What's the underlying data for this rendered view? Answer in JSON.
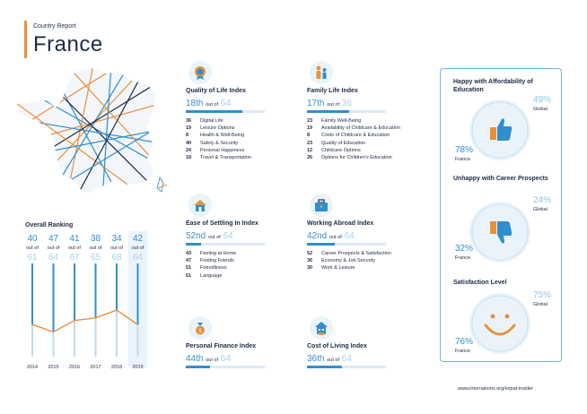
{
  "header": {
    "kicker": "Country Report",
    "country": "France"
  },
  "colors": {
    "accent_orange": "#e8913a",
    "primary_blue": "#2f8fce",
    "light_blue": "#a8d2ee",
    "navy_text": "#1f2a44"
  },
  "overall": {
    "title": "Overall Ranking",
    "out_of_label": "out of",
    "columns": [
      {
        "year": "2014",
        "rank": "40",
        "total": "61"
      },
      {
        "year": "2015",
        "rank": "47",
        "total": "64"
      },
      {
        "year": "2016",
        "rank": "41",
        "total": "67"
      },
      {
        "year": "2017",
        "rank": "38",
        "total": "65"
      },
      {
        "year": "2018",
        "rank": "34",
        "total": "68"
      },
      {
        "year": "2019",
        "rank": "42",
        "total": "64"
      }
    ],
    "highlight_year": "2019"
  },
  "indices": {
    "quality": {
      "title": "Quality of Life Index",
      "rank": "18th",
      "out_of": "out of",
      "total": "64",
      "rank_fraction": 0.72,
      "icon": "life-quality-icon",
      "items": [
        {
          "num": "36",
          "label": "Digital Life"
        },
        {
          "num": "19",
          "label": "Leisure Options"
        },
        {
          "num": "8",
          "label": "Health & Well-Being"
        },
        {
          "num": "40",
          "label": "Safety & Security"
        },
        {
          "num": "24",
          "label": "Personal Happiness"
        },
        {
          "num": "18",
          "label": "Travel & Transportation"
        }
      ]
    },
    "family": {
      "title": "Family Life Index",
      "rank": "17th",
      "out_of": "out of",
      "total": "36",
      "rank_fraction": 0.53,
      "icon": "family-icon",
      "items": [
        {
          "num": "23",
          "label": "Family Well-Being"
        },
        {
          "num": "19",
          "label": "Availability of Childcare & Education"
        },
        {
          "num": "8",
          "label": "Costs of Childcare & Education"
        },
        {
          "num": "23",
          "label": "Quality of Education"
        },
        {
          "num": "12",
          "label": "Childcare Options"
        },
        {
          "num": "26",
          "label": "Options for Children's Education"
        }
      ]
    },
    "settling": {
      "title": "Ease of Settling In Index",
      "rank": "52nd",
      "out_of": "out of",
      "total": "64",
      "rank_fraction": 0.19,
      "icon": "house-icon",
      "items": [
        {
          "num": "43",
          "label": "Feeling at Home"
        },
        {
          "num": "47",
          "label": "Finding Friends"
        },
        {
          "num": "51",
          "label": "Friendliness"
        },
        {
          "num": "61",
          "label": "Language"
        }
      ]
    },
    "working": {
      "title": "Working Abroad Index",
      "rank": "42nd",
      "out_of": "out of",
      "total": "64",
      "rank_fraction": 0.35,
      "icon": "briefcase-icon",
      "items": [
        {
          "num": "52",
          "label": "Career Prospects & Satisfaction"
        },
        {
          "num": "36",
          "label": "Economy & Job Security"
        },
        {
          "num": "30",
          "label": "Work & Leisure"
        }
      ]
    },
    "finance": {
      "title": "Personal Finance Index",
      "rank": "44th",
      "out_of": "out of",
      "total": "64",
      "rank_fraction": 0.31,
      "icon": "money-bag-icon",
      "items": []
    },
    "cost": {
      "title": "Cost of Living Index",
      "rank": "36th",
      "out_of": "out of",
      "total": "64",
      "rank_fraction": 0.44,
      "icon": "house-coins-icon",
      "items": []
    }
  },
  "panel": {
    "affordability": {
      "title": "Happy with Affordability of Education",
      "global": "49%",
      "france": "78%",
      "global_label": "Global",
      "france_label": "France",
      "icon": "thumbs-up-icon"
    },
    "career": {
      "title": "Unhappy with Career Prospects",
      "global": "24%",
      "france": "32%",
      "global_label": "Global",
      "france_label": "France",
      "icon": "thumbs-down-icon"
    },
    "satisfaction": {
      "title": "Satisfaction Level",
      "global": "75%",
      "france": "76%",
      "global_label": "Global",
      "france_label": "France",
      "icon": "smiley-icon"
    }
  },
  "footer": {
    "url": "www.internations.org/expat-insider"
  }
}
